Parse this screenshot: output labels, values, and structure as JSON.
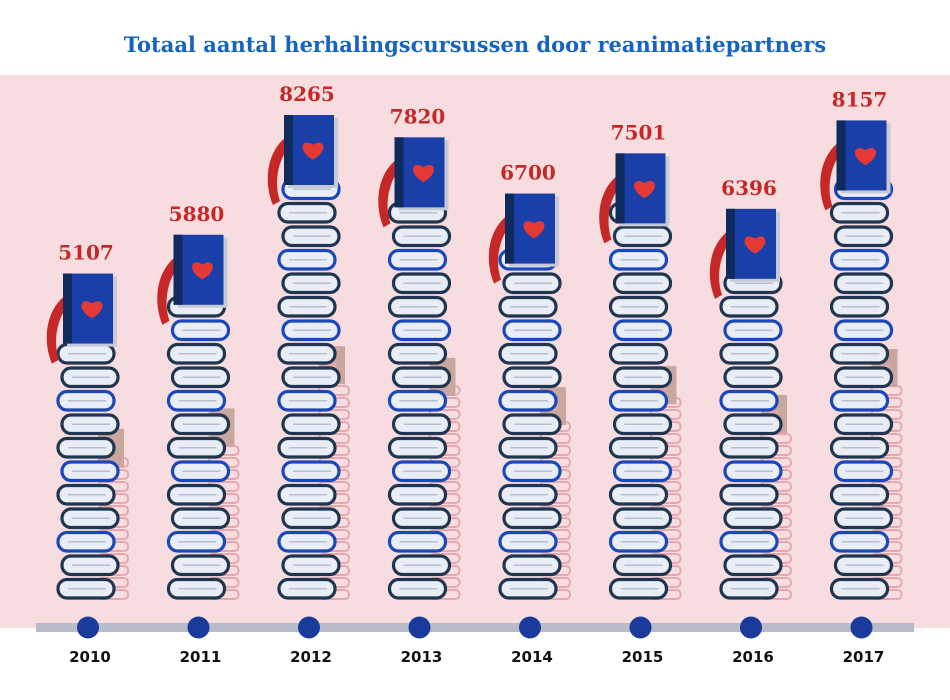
{
  "title": "Totaal aantal herhalingscursussen door reanimatiepartners",
  "colors": {
    "title": "#1565c0",
    "background_panel": "#f7dde0",
    "value_label": "#c62828",
    "book_cover": "#1a3fa8",
    "book_spine": "#0f2a5c",
    "heart": "#e53935",
    "ribbon": "#c62828",
    "book_dark": "#1f3550",
    "book_blue": "#1a48b8",
    "ghost_book": "#e6a8ae",
    "ghost_cover": "#c9a79f",
    "timeline": "#b8bcc8",
    "timeline_dot": "#1a3a9c",
    "year_label": "#111111"
  },
  "chart_data": {
    "type": "bar",
    "title": "Totaal aantal herhalingscursussen door reanimatiepartners",
    "categories": [
      "2010",
      "2011",
      "2012",
      "2013",
      "2014",
      "2015",
      "2016",
      "2017"
    ],
    "values": [
      5107,
      5880,
      8265,
      7820,
      6700,
      7501,
      6396,
      8157
    ],
    "xlabel": "",
    "ylabel": "",
    "grid": false,
    "legend": "none"
  }
}
